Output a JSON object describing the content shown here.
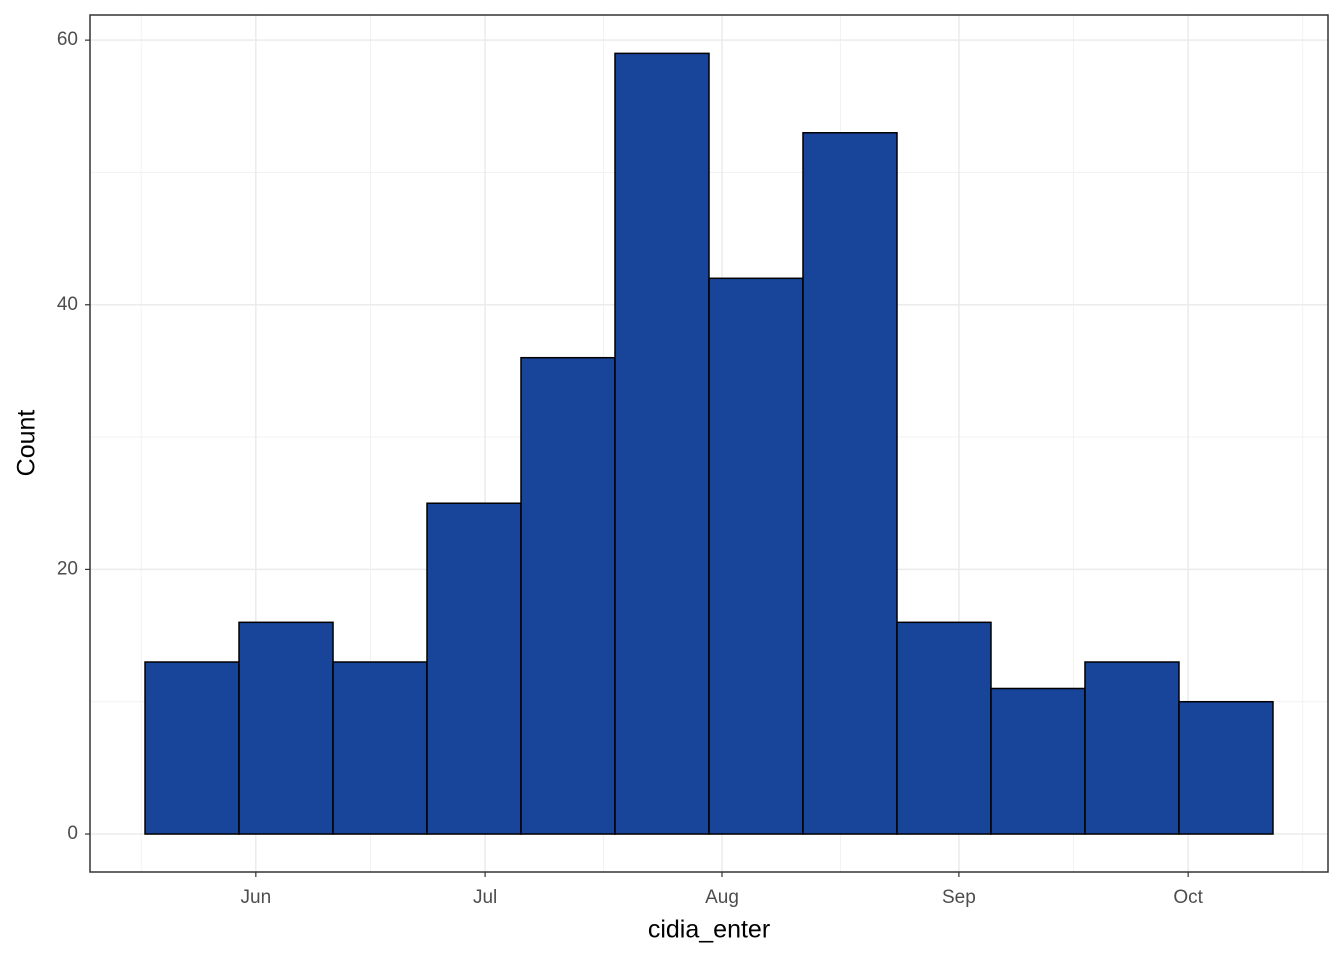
{
  "chart_data": {
    "type": "histogram",
    "x_label": "cidia_enter",
    "y_label": "Count",
    "bins": [
      137.5,
      149.8,
      162.1,
      174.4,
      186.7,
      199.0,
      211.3,
      223.6,
      235.9,
      248.2,
      260.5,
      272.8,
      285.1
    ],
    "values": [
      13,
      16,
      13,
      25,
      36,
      59,
      42,
      53,
      16,
      11,
      13,
      10
    ],
    "color": "#18449a",
    "xlim": [
      130.3,
      292.3
    ],
    "xticks": [
      {
        "value": 152,
        "label": "Jun"
      },
      {
        "value": 182,
        "label": "Jul"
      },
      {
        "value": 213,
        "label": "Aug"
      },
      {
        "value": 244,
        "label": "Sep"
      },
      {
        "value": 274,
        "label": "Oct"
      }
    ],
    "ylim": [
      -2.87,
      61.9
    ],
    "yticks": [
      0,
      20,
      40,
      60
    ],
    "grid": true
  }
}
